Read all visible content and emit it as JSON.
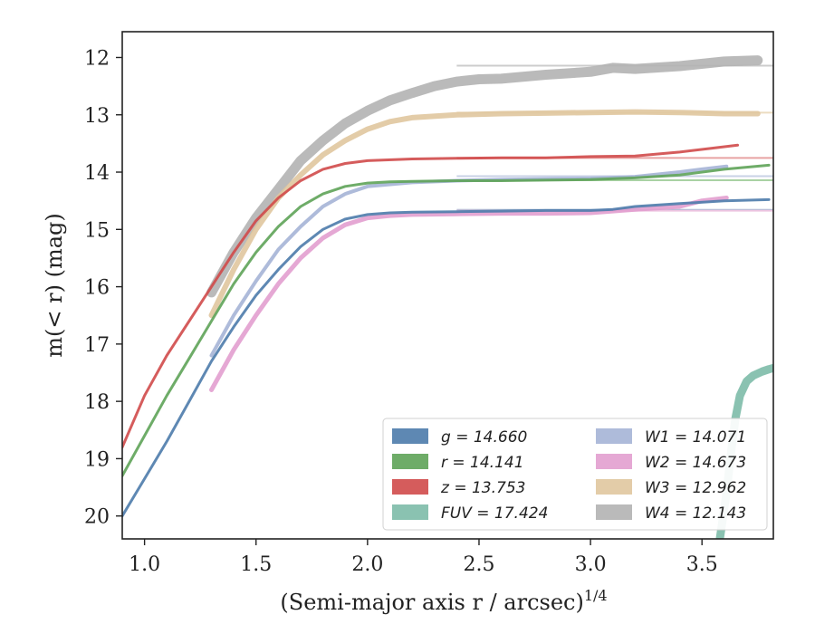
{
  "chart_data": {
    "type": "line",
    "title": "",
    "xlabel": "(Semi-major axis r / arcsec)",
    "xlabel_sup": "1/4",
    "ylabel": "m(< r) (mag)",
    "xlim": [
      0.9,
      3.82
    ],
    "ylim": [
      20.4,
      11.55
    ],
    "y_inverted": true,
    "xticks": [
      "1.0",
      "1.5",
      "2.0",
      "2.5",
      "3.0",
      "3.5"
    ],
    "yticks": [
      "12",
      "13",
      "14",
      "15",
      "16",
      "17",
      "18",
      "19",
      "20"
    ],
    "legend_position": "lower-right",
    "legend_columns": 2,
    "series": [
      {
        "name": "g",
        "total": "14.660",
        "label": "g = 14.660",
        "color": "#4c7bab",
        "band_width": 3,
        "x": [
          0.9,
          1.0,
          1.1,
          1.2,
          1.3,
          1.4,
          1.5,
          1.6,
          1.7,
          1.8,
          1.9,
          2.0,
          2.1,
          2.2,
          2.4,
          2.6,
          2.8,
          3.0,
          3.1,
          3.2,
          3.4,
          3.6,
          3.8
        ],
        "y": [
          20.0,
          19.35,
          18.7,
          18.0,
          17.3,
          16.7,
          16.15,
          15.7,
          15.3,
          15.0,
          14.82,
          14.74,
          14.71,
          14.7,
          14.69,
          14.68,
          14.67,
          14.67,
          14.65,
          14.6,
          14.55,
          14.5,
          14.48
        ]
      },
      {
        "name": "r",
        "total": "14.141",
        "label": "r = 14.141",
        "color": "#5ea358",
        "band_width": 3,
        "x": [
          0.9,
          1.0,
          1.1,
          1.2,
          1.3,
          1.4,
          1.5,
          1.6,
          1.7,
          1.8,
          1.9,
          2.0,
          2.1,
          2.2,
          2.4,
          2.6,
          2.8,
          3.0,
          3.2,
          3.4,
          3.6,
          3.8
        ],
        "y": [
          19.3,
          18.6,
          17.9,
          17.25,
          16.6,
          15.95,
          15.4,
          14.95,
          14.6,
          14.38,
          14.25,
          14.19,
          14.17,
          14.16,
          14.15,
          14.15,
          14.14,
          14.13,
          14.1,
          14.05,
          13.95,
          13.88
        ]
      },
      {
        "name": "z",
        "total": "13.753",
        "label": "z = 13.753",
        "color": "#d04a4a",
        "band_width": 3,
        "x": [
          0.9,
          1.0,
          1.1,
          1.2,
          1.3,
          1.4,
          1.5,
          1.6,
          1.7,
          1.8,
          1.9,
          2.0,
          2.2,
          2.4,
          2.6,
          2.8,
          3.0,
          3.2,
          3.4,
          3.55,
          3.66
        ],
        "y": [
          18.8,
          17.9,
          17.2,
          16.6,
          16.0,
          15.4,
          14.85,
          14.45,
          14.15,
          13.95,
          13.85,
          13.8,
          13.77,
          13.76,
          13.75,
          13.75,
          13.73,
          13.72,
          13.65,
          13.58,
          13.53
        ]
      },
      {
        "name": "FUV",
        "total": "17.424",
        "label": "FUV = 17.424",
        "color": "#7dbba8",
        "band_width": 9,
        "x": [
          3.58,
          3.61,
          3.63,
          3.65,
          3.67,
          3.7,
          3.73,
          3.77,
          3.8,
          3.82
        ],
        "y": [
          20.4,
          19.6,
          18.9,
          18.3,
          17.9,
          17.65,
          17.55,
          17.48,
          17.44,
          17.42
        ]
      },
      {
        "name": "W1",
        "total": "14.071",
        "label": "W1 = 14.071",
        "color": "#a5b4d6",
        "band_width": 4,
        "x": [
          1.3,
          1.4,
          1.5,
          1.6,
          1.7,
          1.8,
          1.9,
          2.0,
          2.2,
          2.4,
          2.6,
          2.8,
          3.0,
          3.2,
          3.4,
          3.5,
          3.61
        ],
        "y": [
          17.2,
          16.5,
          15.9,
          15.35,
          14.95,
          14.6,
          14.38,
          14.25,
          14.18,
          14.15,
          14.13,
          14.12,
          14.11,
          14.08,
          14.0,
          13.95,
          13.9
        ]
      },
      {
        "name": "W2",
        "total": "14.673",
        "label": "W2 = 14.673",
        "color": "#e29fcf",
        "band_width": 5,
        "x": [
          1.3,
          1.4,
          1.5,
          1.6,
          1.7,
          1.8,
          1.9,
          2.0,
          2.1,
          2.2,
          2.4,
          2.6,
          2.8,
          3.0,
          3.1,
          3.2,
          3.4,
          3.5,
          3.61
        ],
        "y": [
          17.8,
          17.1,
          16.5,
          15.95,
          15.5,
          15.15,
          14.92,
          14.8,
          14.76,
          14.74,
          14.73,
          14.72,
          14.72,
          14.71,
          14.68,
          14.65,
          14.6,
          14.5,
          14.45
        ]
      },
      {
        "name": "W3",
        "total": "12.962",
        "label": "W3 = 12.962",
        "color": "#e0c79e",
        "band_width": 6,
        "x": [
          1.3,
          1.4,
          1.5,
          1.6,
          1.7,
          1.8,
          1.9,
          2.0,
          2.1,
          2.2,
          2.4,
          2.6,
          2.8,
          3.0,
          3.2,
          3.4,
          3.6,
          3.75
        ],
        "y": [
          16.5,
          15.7,
          15.0,
          14.45,
          14.05,
          13.7,
          13.45,
          13.25,
          13.12,
          13.05,
          13.0,
          12.98,
          12.97,
          12.96,
          12.95,
          12.96,
          12.98,
          12.98
        ]
      },
      {
        "name": "W4",
        "total": "12.143",
        "label": "W4 = 12.143",
        "color": "#b3b3b3",
        "band_width": 11,
        "x": [
          1.3,
          1.4,
          1.5,
          1.6,
          1.7,
          1.8,
          1.9,
          2.0,
          2.1,
          2.2,
          2.3,
          2.4,
          2.5,
          2.6,
          2.8,
          3.0,
          3.1,
          3.2,
          3.4,
          3.6,
          3.75
        ],
        "y": [
          16.1,
          15.4,
          14.8,
          14.3,
          13.8,
          13.45,
          13.15,
          12.93,
          12.75,
          12.62,
          12.5,
          12.42,
          12.38,
          12.37,
          12.3,
          12.25,
          12.18,
          12.2,
          12.15,
          12.07,
          12.05
        ]
      }
    ],
    "asymptotes": [
      {
        "value": 12.143,
        "color": "#cccccc"
      },
      {
        "value": 12.962,
        "color": "#ecdcc0"
      },
      {
        "value": 13.753,
        "color": "#e8a3a3"
      },
      {
        "value": 14.071,
        "color": "#c9d2e6"
      },
      {
        "value": 14.141,
        "color": "#a9d2a4"
      },
      {
        "value": 14.66,
        "color": "#9fb6cf"
      },
      {
        "value": 14.673,
        "color": "#eec4e1"
      }
    ]
  }
}
